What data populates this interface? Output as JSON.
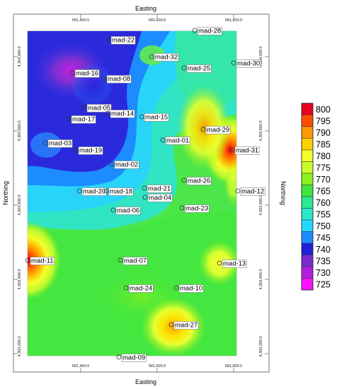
{
  "map": {
    "x_axis_title": "Easting",
    "y_axis_title": "Northing",
    "x_ticks": [
      "581,400.0",
      "581,600.0",
      "581,800.0"
    ],
    "y_ticks": [
      "4,304,000.0",
      "4,303,800.0",
      "4,303,600.0",
      "4,303,400.0",
      "4,303,200.0"
    ],
    "wells": [
      {
        "name": "mad-28"
      },
      {
        "name": "mad-22"
      },
      {
        "name": "mad-32"
      },
      {
        "name": "mad-30"
      },
      {
        "name": "mad-25"
      },
      {
        "name": "mad-16"
      },
      {
        "name": "mad-08"
      },
      {
        "name": "mad-05"
      },
      {
        "name": "mad-14"
      },
      {
        "name": "mad-15"
      },
      {
        "name": "mad-17"
      },
      {
        "name": "mad-29"
      },
      {
        "name": "mad-01"
      },
      {
        "name": "mad-03"
      },
      {
        "name": "mad-19"
      },
      {
        "name": "mad-31"
      },
      {
        "name": "mad-02"
      },
      {
        "name": "mad-26"
      },
      {
        "name": "mad-20"
      },
      {
        "name": "mad-18"
      },
      {
        "name": "mad-21"
      },
      {
        "name": "mad-12"
      },
      {
        "name": "mad-06"
      },
      {
        "name": "mad-04"
      },
      {
        "name": "mad-23"
      },
      {
        "name": "mad-11"
      },
      {
        "name": "mad-07"
      },
      {
        "name": "mad-13"
      },
      {
        "name": "mad-24"
      },
      {
        "name": "mad-10"
      },
      {
        "name": "mad-27"
      },
      {
        "name": "mad-09"
      }
    ]
  },
  "legend": {
    "values": [
      "800",
      "795",
      "790",
      "785",
      "780",
      "775",
      "770",
      "765",
      "760",
      "755",
      "750",
      "745",
      "740",
      "735",
      "730",
      "725"
    ],
    "colors": [
      "#e8001c",
      "#ff4d00",
      "#ff9a00",
      "#ffd000",
      "#f4ff2a",
      "#c8ff2a",
      "#8cf020",
      "#3ce83c",
      "#2ee894",
      "#2ee6cc",
      "#22d8ff",
      "#1a8cff",
      "#2020d8",
      "#7a2ad0",
      "#b41ee0",
      "#ff10ff"
    ]
  }
}
